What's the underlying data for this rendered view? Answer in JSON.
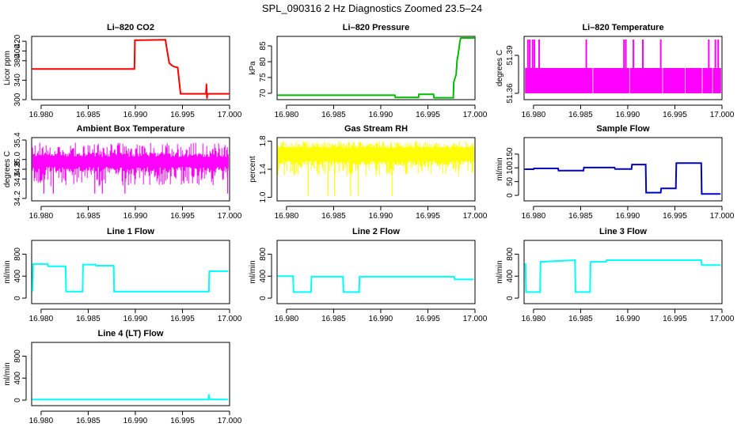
{
  "figure": {
    "title": "SPL_090316  2 Hz Diagnostics Zoomed 23.5–24"
  },
  "chart_data": [
    {
      "id": "co2",
      "type": "line",
      "title": "Li–820 CO2",
      "ylabel": "Licor ppm",
      "color": "#ff0000",
      "xlim": [
        16.979,
        17.0
      ],
      "xticks": [
        16.98,
        16.985,
        16.99,
        16.995,
        17.0
      ],
      "xtick_labels": [
        "16.980",
        "16.985",
        "16.990",
        "16.995",
        "17.000"
      ],
      "ylim": [
        300,
        430
      ],
      "yticks": [
        300,
        340,
        380,
        400,
        420
      ],
      "ytick_labels": [
        "300",
        "340",
        "380",
        "400",
        "420"
      ],
      "series": [
        {
          "x": [
            16.9791,
            16.9899,
            16.98995,
            16.9932,
            16.9933,
            16.9936,
            16.9939,
            16.9941,
            16.9945,
            16.9948,
            16.995,
            16.9975,
            16.99755,
            16.9976,
            16.99765,
            17.0
          ],
          "y": [
            363,
            363,
            422,
            423,
            410,
            375,
            370,
            368,
            366,
            312,
            312,
            312,
            332,
            303,
            312,
            312
          ]
        }
      ]
    },
    {
      "id": "pressure",
      "type": "line",
      "title": "Li–820 Pressure",
      "ylabel": "kPa",
      "color": "#00bb00",
      "xlim": [
        16.979,
        17.0
      ],
      "xticks": [
        16.98,
        16.985,
        16.99,
        16.995,
        17.0
      ],
      "xtick_labels": [
        "16.980",
        "16.985",
        "16.990",
        "16.995",
        "17.000"
      ],
      "ylim": [
        68,
        88
      ],
      "yticks": [
        70,
        75,
        80,
        85
      ],
      "ytick_labels": [
        "70",
        "75",
        "80",
        "85"
      ],
      "series": [
        {
          "x": [
            16.9791,
            16.9915,
            16.99155,
            16.994,
            16.99405,
            16.9956,
            16.99565,
            16.9977,
            16.99775,
            16.998,
            16.9981,
            16.9982,
            16.9984,
            16.9985,
            17.0
          ],
          "y": [
            69.4,
            69.4,
            68.7,
            68.7,
            69.7,
            69.7,
            68.6,
            68.6,
            73.5,
            76.0,
            80.5,
            82.0,
            86.5,
            87.5,
            87.5
          ]
        }
      ]
    },
    {
      "id": "licor-temp",
      "type": "line",
      "title": "Li–820 Temperature",
      "ylabel": "degrees C",
      "color": "#ff00ff",
      "xlim": [
        16.979,
        17.0
      ],
      "xticks": [
        16.98,
        16.985,
        16.99,
        16.995,
        17.0
      ],
      "xtick_labels": [
        "16.980",
        "16.985",
        "16.990",
        "16.995",
        "17.000"
      ],
      "ylim": [
        51.355,
        51.405
      ],
      "yticks": [
        51.36,
        51.39
      ],
      "ytick_labels": [
        "51.36",
        "51.39"
      ],
      "series": [
        {
          "band": [
            51.36,
            51.38
          ],
          "spike_to": 51.4025,
          "spikes_x": [
            16.9794,
            16.9796,
            16.9799,
            16.9801,
            16.9806,
            16.9856,
            16.9896,
            16.9898,
            16.9906,
            16.9916,
            16.9935,
            16.9986,
            16.9993,
            16.9996
          ]
        }
      ]
    },
    {
      "id": "box-temp",
      "type": "line",
      "title": "Ambient Box Temperature",
      "ylabel": "degrees C",
      "color": "#ff00ff",
      "xlim": [
        16.979,
        17.0
      ],
      "xticks": [
        16.98,
        16.985,
        16.99,
        16.995,
        17.0
      ],
      "xtick_labels": [
        "16.980",
        "16.985",
        "16.990",
        "16.995",
        "17.000"
      ],
      "ylim": [
        34.15,
        35.45
      ],
      "yticks": [
        34.2,
        34.6,
        34.8,
        35.0,
        35.4
      ],
      "ytick_labels": [
        "34.2",
        "34.6",
        "34.8",
        "35.0",
        "35.4"
      ],
      "series": [
        {
          "band": [
            34.85,
            35.05
          ],
          "noise_min": 34.45,
          "noise_max": 35.35,
          "dips_x": [
            16.9803,
            16.9813,
            16.9857,
            16.9865,
            16.9889,
            16.9998
          ],
          "dip_to": 34.3
        }
      ]
    },
    {
      "id": "rh",
      "type": "line",
      "title": "Gas Stream RH",
      "ylabel": "percent",
      "color": "#ffff00",
      "xlim": [
        16.979,
        17.0
      ],
      "xticks": [
        16.98,
        16.985,
        16.99,
        16.995,
        17.0
      ],
      "xtick_labels": [
        "16.980",
        "16.985",
        "16.990",
        "16.995",
        "17.000"
      ],
      "ylim": [
        0.95,
        1.85
      ],
      "yticks": [
        1.0,
        1.4,
        1.8
      ],
      "ytick_labels": [
        "1.0",
        "1.4",
        "1.8"
      ],
      "series": [
        {
          "band": [
            1.52,
            1.7
          ],
          "noise_min": 1.3,
          "noise_max": 1.8,
          "dips_x": [
            16.9823,
            16.9844,
            16.9851,
            16.9868,
            16.9876,
            16.9912
          ],
          "dip_to": 1.02
        }
      ]
    },
    {
      "id": "sample-flow",
      "type": "line",
      "title": "Sample Flow",
      "ylabel": "ml/min",
      "color": "#0000cc",
      "xlim": [
        16.979,
        17.0
      ],
      "xticks": [
        16.98,
        16.985,
        16.99,
        16.995,
        17.0
      ],
      "xtick_labels": [
        "16.980",
        "16.985",
        "16.990",
        "16.995",
        "17.000"
      ],
      "ylim": [
        -20,
        210
      ],
      "yticks": [
        0,
        50,
        100,
        150
      ],
      "ytick_labels": [
        "0",
        "50",
        "100",
        "150"
      ],
      "series": [
        {
          "x": [
            16.9791,
            16.98,
            16.98005,
            16.9826,
            16.98265,
            16.9853,
            16.98535,
            16.9886,
            16.98865,
            16.9904,
            16.99045,
            16.9919,
            16.99195,
            16.9935,
            16.99355,
            16.9951,
            16.99515,
            16.9978,
            16.99785,
            16.9998
          ],
          "y": [
            95,
            95,
            98,
            98,
            90,
            90,
            101,
            101,
            96,
            96,
            112,
            112,
            10,
            10,
            25,
            25,
            117,
            117,
            5,
            5
          ]
        }
      ]
    },
    {
      "id": "line1",
      "type": "line",
      "title": "Line 1 Flow",
      "ylabel": "ml/min",
      "color": "#00ffff",
      "xlim": [
        16.979,
        17.0
      ],
      "xticks": [
        16.98,
        16.985,
        16.99,
        16.995,
        17.0
      ],
      "xtick_labels": [
        "16.980",
        "16.985",
        "16.990",
        "16.995",
        "17.000"
      ],
      "ylim": [
        -100,
        1050
      ],
      "yticks": [
        0,
        400,
        800
      ],
      "ytick_labels": [
        "0",
        "400",
        "800"
      ],
      "series": [
        {
          "x": [
            16.9791,
            16.97915,
            16.9807,
            16.98075,
            16.9826,
            16.98265,
            16.9844,
            16.98445,
            16.9858,
            16.98585,
            16.9877,
            16.98775,
            16.9978,
            16.99785,
            16.9998
          ],
          "y": [
            130,
            620,
            620,
            580,
            580,
            120,
            120,
            610,
            610,
            590,
            590,
            120,
            120,
            490,
            490
          ]
        }
      ]
    },
    {
      "id": "line2",
      "type": "line",
      "title": "Line 2 Flow",
      "ylabel": "ml/min",
      "color": "#00ffff",
      "xlim": [
        16.979,
        17.0
      ],
      "xticks": [
        16.98,
        16.985,
        16.99,
        16.995,
        17.0
      ],
      "xtick_labels": [
        "16.980",
        "16.985",
        "16.990",
        "16.995",
        "17.000"
      ],
      "ylim": [
        -100,
        1050
      ],
      "yticks": [
        0,
        400,
        800
      ],
      "ytick_labels": [
        "0",
        "400",
        "800"
      ],
      "series": [
        {
          "x": [
            16.9791,
            16.9807,
            16.98075,
            16.9826,
            16.98265,
            16.986,
            16.98605,
            16.9877,
            16.98775,
            16.9978,
            16.99785,
            16.9998
          ],
          "y": [
            400,
            400,
            110,
            110,
            390,
            390,
            110,
            110,
            390,
            390,
            340,
            340
          ]
        }
      ]
    },
    {
      "id": "line3",
      "type": "line",
      "title": "Line 3 Flow",
      "ylabel": "ml/min",
      "color": "#00ffff",
      "xlim": [
        16.979,
        17.0
      ],
      "xticks": [
        16.98,
        16.985,
        16.99,
        16.995,
        17.0
      ],
      "xtick_labels": [
        "16.980",
        "16.985",
        "16.990",
        "16.995",
        "17.000"
      ],
      "ylim": [
        -100,
        1050
      ],
      "yticks": [
        0,
        400,
        800
      ],
      "ytick_labels": [
        "0",
        "400",
        "800"
      ],
      "series": [
        {
          "x": [
            16.9791,
            16.97915,
            16.9792,
            16.9807,
            16.98075,
            16.9844,
            16.98445,
            16.986,
            16.98605,
            16.9877,
            16.98775,
            16.9978,
            16.99785,
            16.9998
          ],
          "y": [
            620,
            620,
            110,
            110,
            660,
            690,
            110,
            110,
            660,
            660,
            690,
            690,
            600,
            600
          ]
        }
      ]
    },
    {
      "id": "line4",
      "type": "line",
      "title": "Line 4 (LT) Flow",
      "ylabel": "ml/min",
      "color": "#00ffff",
      "xlim": [
        16.979,
        17.0
      ],
      "xticks": [
        16.98,
        16.985,
        16.99,
        16.995,
        17.0
      ],
      "xtick_labels": [
        "16.980",
        "16.985",
        "16.990",
        "16.995",
        "17.000"
      ],
      "ylim": [
        -100,
        1050
      ],
      "yticks": [
        0,
        400,
        800
      ],
      "ytick_labels": [
        "0",
        "400",
        "800"
      ],
      "series": [
        {
          "x": [
            16.9791,
            16.99775,
            16.9978,
            16.99785,
            16.9998
          ],
          "y": [
            10,
            10,
            100,
            15,
            10
          ]
        }
      ]
    }
  ]
}
